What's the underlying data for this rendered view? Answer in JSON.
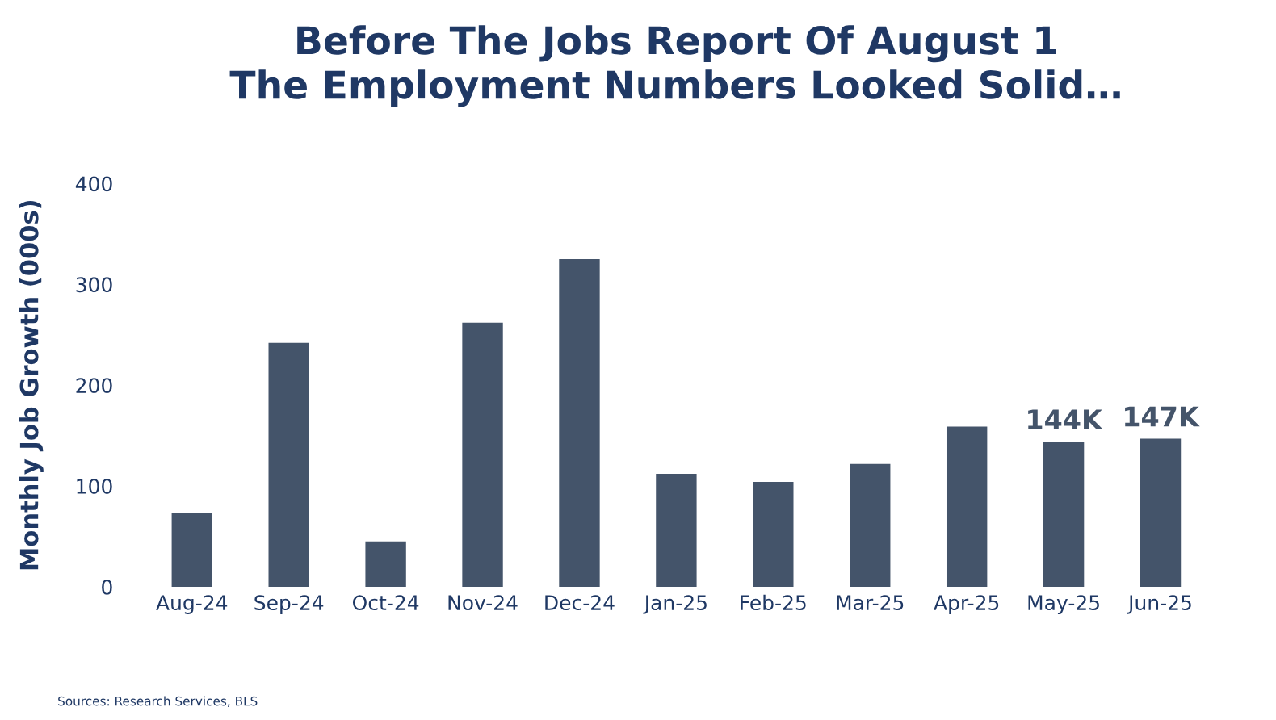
{
  "chart_data": {
    "type": "bar",
    "title": "Before The Jobs Report Of August 1\nThe Employment Numbers Looked Solid…",
    "ylabel": "Monthly Job Growth (000s)",
    "categories": [
      "Aug-24",
      "Sep-24",
      "Oct-24",
      "Nov-24",
      "Dec-24",
      "Jan-25",
      "Feb-25",
      "Mar-25",
      "Apr-25",
      "May-25",
      "Jun-25"
    ],
    "values": [
      73,
      242,
      45,
      262,
      325,
      112,
      104,
      122,
      159,
      144,
      147
    ],
    "value_labels": [
      null,
      null,
      null,
      null,
      null,
      null,
      null,
      null,
      null,
      "144K",
      "147K"
    ],
    "color": "#44546a",
    "ylim": [
      0,
      400
    ],
    "yticks": [
      0,
      100,
      200,
      300,
      400
    ],
    "grid": false,
    "annotations": [
      "Sources: Research Services, BLS"
    ]
  }
}
